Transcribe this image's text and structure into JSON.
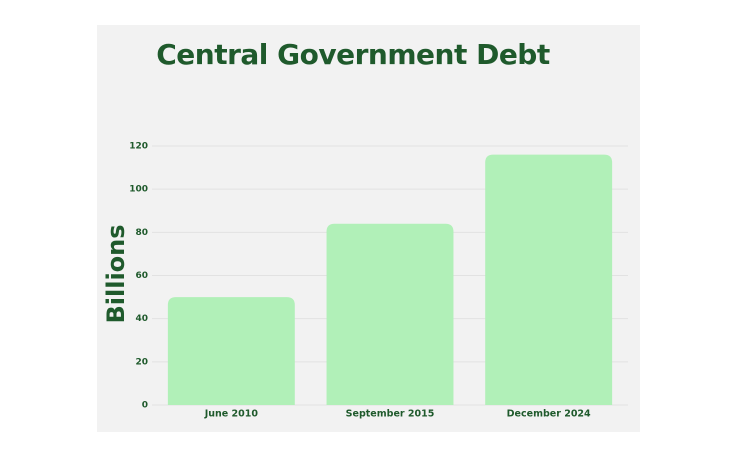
{
  "chart_data": {
    "type": "bar",
    "title": "Central Government Debt",
    "y_label": "Billions",
    "categories": [
      "June 2010",
      "September 2015",
      "December 2024"
    ],
    "values": [
      50,
      84,
      116
    ],
    "color": "#b1f0b8",
    "ylim": [
      0,
      120
    ],
    "yticks": [
      0,
      20,
      40,
      60,
      80,
      100,
      120
    ],
    "grid": true
  }
}
